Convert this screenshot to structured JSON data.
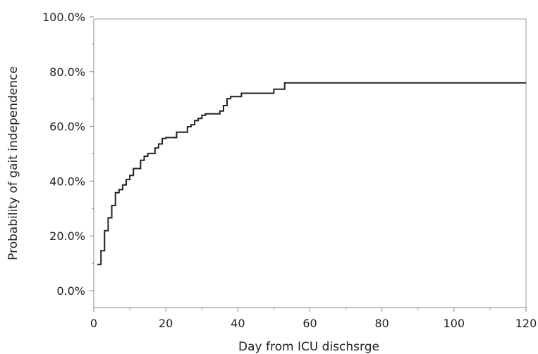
{
  "chart_data": {
    "type": "line",
    "title": "",
    "xlabel": "Day from ICU dischsrge",
    "ylabel": "Probability of gait independence",
    "xlim": [
      0,
      120
    ],
    "ylim": [
      0,
      100
    ],
    "x_ticks": [
      "0",
      "20",
      "40",
      "60",
      "80",
      "100",
      "120"
    ],
    "y_ticks": [
      "0.0%",
      "20.0%",
      "40.0%",
      "60.0%",
      "80.0%",
      "100.0%"
    ],
    "grid": false,
    "legend": "none",
    "colors": {
      "line": "#222222",
      "axis": "#888888",
      "frame": "#9a9a9a"
    },
    "series": [
      {
        "step": "post",
        "x": [
          1,
          2,
          3,
          4,
          5,
          6,
          7,
          8,
          9,
          10,
          11,
          13,
          14,
          15,
          17,
          18,
          19,
          20,
          23,
          26,
          27,
          28,
          29,
          30,
          31,
          35,
          36,
          37,
          38,
          41,
          50,
          53,
          120
        ],
        "y": [
          9.6,
          14.6,
          21.9,
          26.6,
          31.1,
          35.8,
          36.9,
          38.6,
          40.6,
          42.1,
          44.6,
          47.6,
          49.1,
          50.1,
          52.1,
          53.6,
          55.6,
          55.9,
          57.9,
          59.9,
          60.6,
          62.1,
          62.9,
          64.1,
          64.6,
          65.6,
          67.6,
          70.1,
          70.9,
          72.1,
          73.6,
          75.9,
          75.9
        ]
      }
    ]
  }
}
